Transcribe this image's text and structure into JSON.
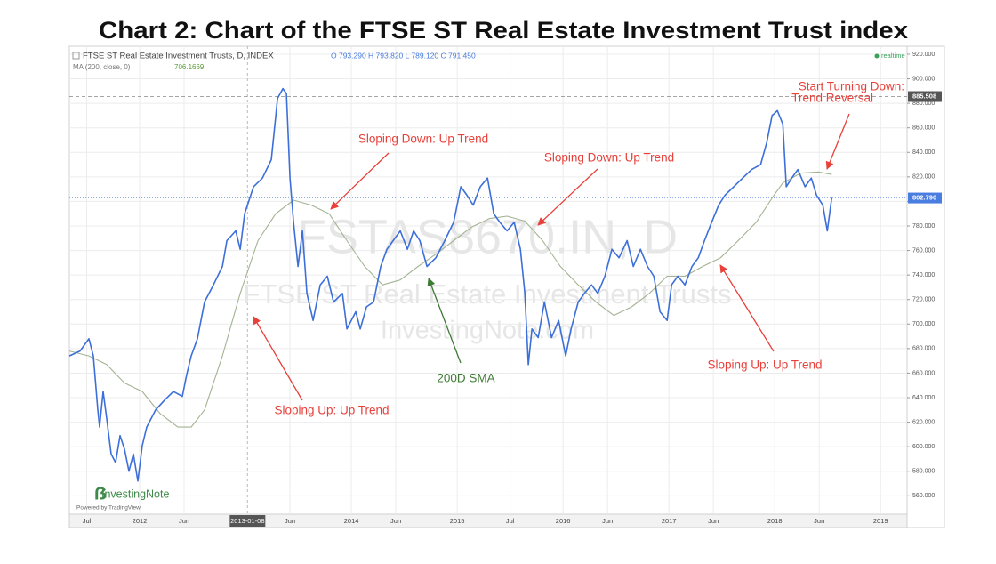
{
  "chart_data": {
    "type": "line",
    "title": "Chart 2: Chart of the FTSE ST Real Estate Investment Trust index",
    "header": {
      "ohlc": "O 793.290 H 793.820 L 789.120 C 791.450",
      "ma_value": "706.1669",
      "realtime": "realtime"
    },
    "watermark": [
      "FSTAS8670.IN, D",
      "FTSE ST Real Estate Investment Trusts",
      "InvestingNote.com"
    ],
    "logo": {
      "name": "InvestingNote",
      "powered": "Powered by TradingView"
    },
    "xlim": [
      2011.336,
      2019.25
    ],
    "xticks": [
      {
        "value": 2011.5,
        "label": "Jul"
      },
      {
        "value": 2012,
        "label": "2012"
      },
      {
        "value": 2012.42,
        "label": "Jun"
      },
      {
        "value": 2013.019,
        "label": "2013-01-08"
      },
      {
        "value": 2013.42,
        "label": "Jun"
      },
      {
        "value": 2014,
        "label": "2014"
      },
      {
        "value": 2014.42,
        "label": "Jun"
      },
      {
        "value": 2015,
        "label": "2015"
      },
      {
        "value": 2015.5,
        "label": "Jul"
      },
      {
        "value": 2016,
        "label": "2016"
      },
      {
        "value": 2016.42,
        "label": "Jun"
      },
      {
        "value": 2017,
        "label": "2017"
      },
      {
        "value": 2017.42,
        "label": "Jun"
      },
      {
        "value": 2018,
        "label": "2018"
      },
      {
        "value": 2018.42,
        "label": "Jun"
      },
      {
        "value": 2019,
        "label": "2019"
      }
    ],
    "ylim": [
      545,
      926.5
    ],
    "yticks": [
      {
        "value": 560,
        "label": "560.000"
      },
      {
        "value": 580,
        "label": "580.000"
      },
      {
        "value": 600,
        "label": "600.000"
      },
      {
        "value": 620,
        "label": "620.000"
      },
      {
        "value": 640,
        "label": "640.000"
      },
      {
        "value": 660,
        "label": "660.000"
      },
      {
        "value": 680,
        "label": "680.000"
      },
      {
        "value": 700,
        "label": "700.000"
      },
      {
        "value": 720,
        "label": "720.000"
      },
      {
        "value": 740,
        "label": "740.000"
      },
      {
        "value": 760,
        "label": "760.000"
      },
      {
        "value": 780,
        "label": "780.000"
      },
      {
        "value": 800,
        "label": "800.000"
      },
      {
        "value": 820,
        "label": "820.000"
      },
      {
        "value": 840,
        "label": "840.000"
      },
      {
        "value": 860,
        "label": "860.000"
      },
      {
        "value": 880,
        "label": "880.000"
      },
      {
        "value": 900,
        "label": "900.000"
      },
      {
        "value": 920,
        "label": "920.000"
      }
    ],
    "grid": true,
    "price_labels": [
      {
        "value": 885.508,
        "label": "885.508",
        "color": "#555555"
      },
      {
        "value": 802.79,
        "label": "802.790",
        "color": "#4a7de0"
      }
    ],
    "crosshair_x": 2013.019,
    "series": [
      {
        "name": "FTSE ST Real Estate Investment Trusts, D, INDEX",
        "color": "#3d6fd9",
        "x": [
          2011.336,
          2011.437,
          2011.521,
          2011.563,
          2011.605,
          2011.622,
          2011.655,
          2011.689,
          2011.731,
          2011.773,
          2011.815,
          2011.857,
          2011.899,
          2011.941,
          2011.983,
          2012.025,
          2012.067,
          2012.151,
          2012.235,
          2012.319,
          2012.403,
          2012.445,
          2012.487,
          2012.546,
          2012.613,
          2012.697,
          2012.782,
          2012.824,
          2012.908,
          2012.95,
          2012.992,
          2013.076,
          2013.16,
          2013.244,
          2013.303,
          2013.353,
          2013.387,
          2013.42,
          2013.454,
          2013.496,
          2013.538,
          2013.58,
          2013.639,
          2013.706,
          2013.773,
          2013.832,
          2013.916,
          2013.958,
          2014.042,
          2014.084,
          2014.143,
          2014.21,
          2014.277,
          2014.336,
          2014.395,
          2014.462,
          2014.529,
          2014.588,
          2014.647,
          2014.714,
          2014.798,
          2014.882,
          2014.966,
          2015.034,
          2015.092,
          2015.151,
          2015.218,
          2015.286,
          2015.345,
          2015.403,
          2015.471,
          2015.538,
          2015.597,
          2015.639,
          2015.672,
          2015.706,
          2015.765,
          2015.824,
          2015.891,
          2015.958,
          2016.025,
          2016.076,
          2016.143,
          2016.202,
          2016.269,
          2016.328,
          2016.395,
          2016.462,
          2016.529,
          2016.605,
          2016.664,
          2016.731,
          2016.798,
          2016.857,
          2016.916,
          2016.983,
          2017.025,
          2017.084,
          2017.151,
          2017.218,
          2017.277,
          2017.336,
          2017.403,
          2017.471,
          2017.529,
          2017.613,
          2017.697,
          2017.782,
          2017.866,
          2017.924,
          2017.975,
          2018.025,
          2018.076,
          2018.109,
          2018.16,
          2018.218,
          2018.286,
          2018.345,
          2018.395,
          2018.454,
          2018.496,
          2018.538
        ],
        "values": [
          674,
          678,
          688,
          674,
          630,
          616,
          645,
          623,
          594,
          587,
          609,
          598,
          580,
          594,
          572,
          601,
          616,
          630,
          638,
          645,
          641,
          659,
          674,
          688,
          718,
          732,
          747,
          768,
          776,
          761,
          790,
          812,
          819,
          834,
          884,
          892,
          888,
          819,
          783,
          747,
          776,
          725,
          703,
          732,
          739,
          718,
          725,
          696,
          710,
          696,
          714,
          718,
          747,
          761,
          768,
          776,
          761,
          776,
          768,
          747,
          754,
          768,
          783,
          812,
          805,
          797,
          812,
          819,
          790,
          783,
          776,
          783,
          761,
          725,
          667,
          696,
          689,
          718,
          689,
          703,
          674,
          696,
          718,
          725,
          732,
          725,
          739,
          761,
          754,
          768,
          747,
          761,
          747,
          739,
          710,
          703,
          732,
          739,
          732,
          747,
          754,
          768,
          783,
          797,
          805,
          812,
          819,
          826,
          830,
          848,
          870,
          874,
          863,
          812,
          819,
          826,
          812,
          819,
          805,
          797,
          776,
          803
        ]
      },
      {
        "name": "MA (200, close, 0)",
        "color": "#a3b393",
        "x": [
          2011.336,
          2011.521,
          2011.689,
          2011.857,
          2012.025,
          2012.193,
          2012.361,
          2012.487,
          2012.613,
          2012.782,
          2012.95,
          2013.118,
          2013.286,
          2013.454,
          2013.622,
          2013.79,
          2013.958,
          2014.126,
          2014.294,
          2014.462,
          2014.63,
          2014.798,
          2014.966,
          2015.134,
          2015.303,
          2015.471,
          2015.639,
          2015.807,
          2015.975,
          2016.143,
          2016.311,
          2016.479,
          2016.647,
          2016.815,
          2016.983,
          2017.151,
          2017.319,
          2017.487,
          2017.655,
          2017.824,
          2017.992,
          2018.076,
          2018.244,
          2018.412,
          2018.538
        ],
        "values": [
          678,
          674,
          667,
          652,
          645,
          627,
          616,
          616,
          630,
          674,
          725,
          768,
          790,
          801,
          797,
          790,
          768,
          747,
          732,
          736,
          747,
          757,
          768,
          779,
          786,
          788,
          784,
          768,
          747,
          732,
          718,
          707,
          714,
          725,
          739,
          739,
          747,
          754,
          768,
          783,
          805,
          815,
          823,
          824,
          822
        ]
      }
    ],
    "annotations": [
      {
        "text": "Sloping Down: Up Trend",
        "color": "#e8403a"
      },
      {
        "text": "Sloping Down: Up Trend",
        "color": "#e8403a"
      },
      {
        "text": "Start Turning Down:",
        "color": "#e8403a"
      },
      {
        "text": "Trend Reversal",
        "color": "#e8403a"
      },
      {
        "text": "200D SMA",
        "color": "#3f7a35"
      },
      {
        "text": "Sloping Up: Up Trend",
        "color": "#e8403a"
      },
      {
        "text": "Sloping Up: Up Trend",
        "color": "#e8403a"
      }
    ]
  }
}
